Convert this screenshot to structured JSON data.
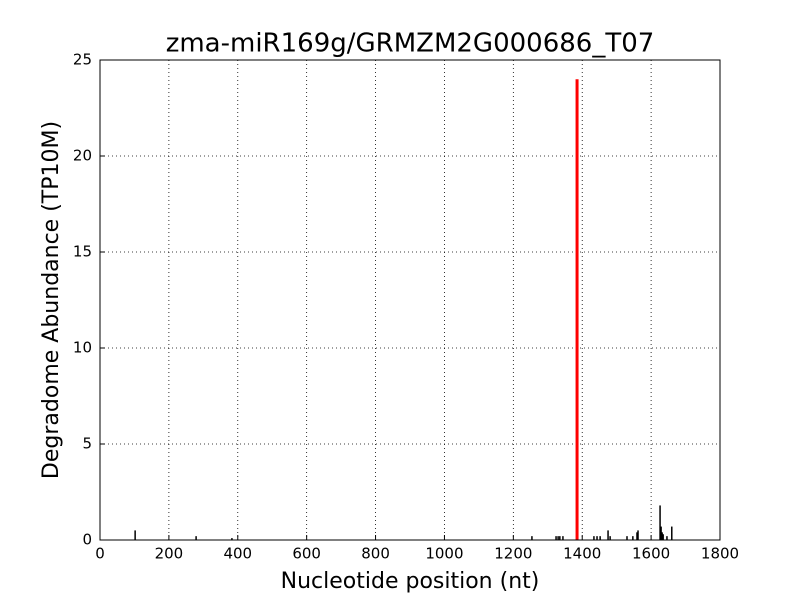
{
  "chart_data": {
    "type": "stem",
    "title": "zma-miR169g/GRMZM2G000686_T07",
    "x_label": "Nucleotide position (nt)",
    "y_label": "Degradome Abundance (TP10M)",
    "x": [
      102,
      279,
      383,
      1254,
      1324,
      1330,
      1335,
      1344,
      1434,
      1443,
      1452,
      1475,
      1481,
      1530,
      1547,
      1559,
      1562,
      1626,
      1629,
      1632,
      1635,
      1646,
      1660
    ],
    "values": [
      0.5,
      0.2,
      0.1,
      0.2,
      0.2,
      0.2,
      0.2,
      0.2,
      0.2,
      0.2,
      0.2,
      0.5,
      0.2,
      0.2,
      0.2,
      0.4,
      0.5,
      1.8,
      0.7,
      0.4,
      0.3,
      0.2,
      0.7
    ],
    "color": "#000000",
    "highlight": {
      "x": 1385,
      "value": 24,
      "color": "#ff0000"
    },
    "xlim": [
      0,
      1800
    ],
    "xticks": [
      0,
      200,
      400,
      600,
      800,
      1000,
      1200,
      1400,
      1600,
      1800
    ],
    "ylim": [
      0,
      25
    ],
    "yticks": [
      0,
      5,
      10,
      15,
      20,
      25
    ],
    "grid": true
  }
}
